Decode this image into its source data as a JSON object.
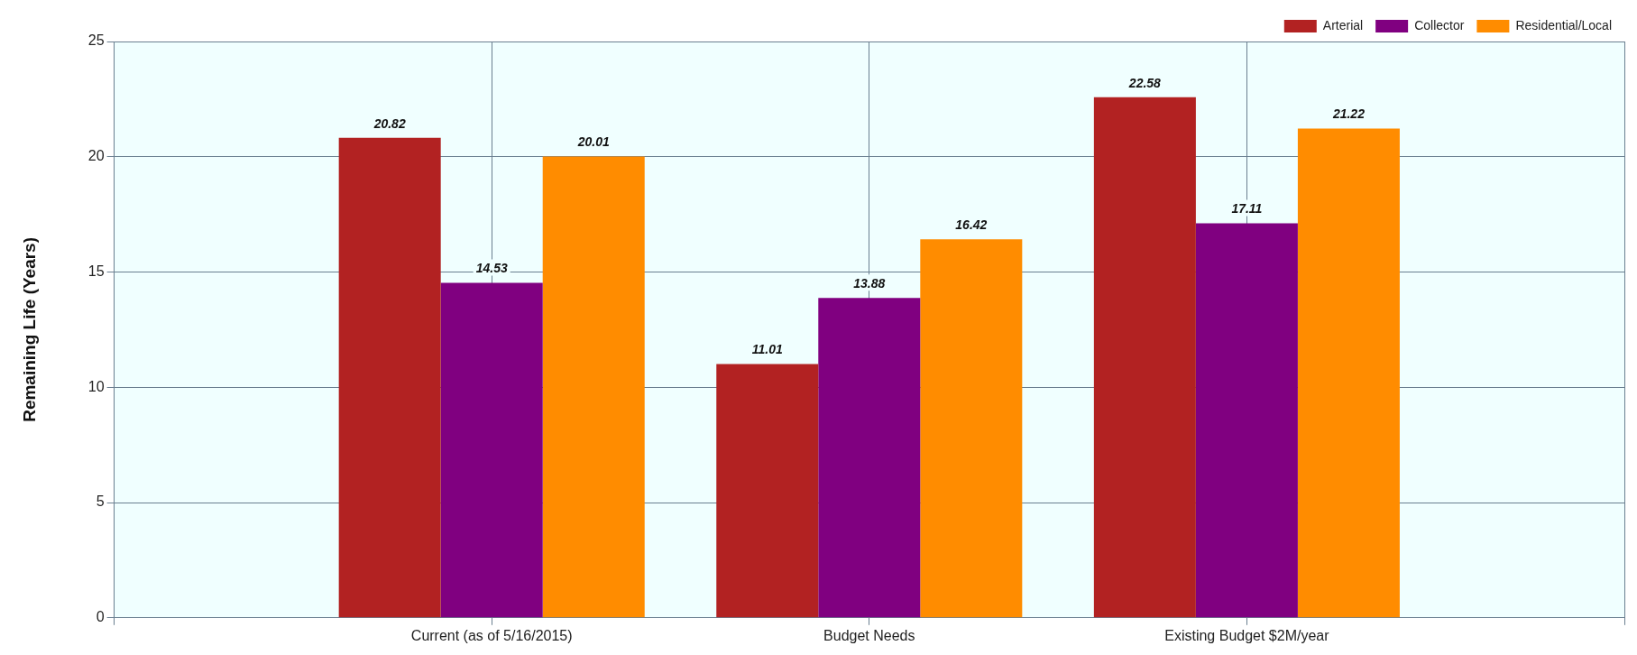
{
  "chart_data": {
    "type": "bar",
    "ylabel": "Remaining Life (Years)",
    "categories": [
      null,
      "Current (as of 5/16/2015)",
      "Budget Needs",
      "Existing Budget $2M/year",
      null
    ],
    "series": [
      {
        "name": "Arterial",
        "color": "#b22222",
        "values": [
          null,
          20.82,
          11.01,
          22.58,
          null
        ]
      },
      {
        "name": "Collector",
        "color": "#800080",
        "values": [
          null,
          14.53,
          13.88,
          17.11,
          null
        ]
      },
      {
        "name": "Residential/Local",
        "color": "#ff8c00",
        "values": [
          null,
          20.01,
          16.42,
          21.22,
          null
        ]
      }
    ],
    "ylim": [
      0,
      25
    ],
    "yticks": [
      0,
      5,
      10,
      15,
      20,
      25
    ],
    "grid": true,
    "legend": "top right",
    "data_labels": true
  }
}
